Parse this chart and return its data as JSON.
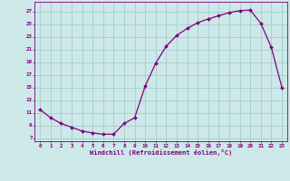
{
  "x": [
    0,
    1,
    2,
    3,
    4,
    5,
    6,
    7,
    8,
    9,
    10,
    11,
    12,
    13,
    14,
    15,
    16,
    17,
    18,
    19,
    20,
    21,
    22,
    23
  ],
  "y": [
    11.5,
    10.2,
    9.3,
    8.7,
    8.1,
    7.8,
    7.6,
    7.6,
    9.3,
    10.2,
    15.2,
    18.8,
    21.5,
    23.2,
    24.3,
    25.2,
    25.8,
    26.3,
    26.8,
    27.1,
    27.2,
    25.1,
    21.3,
    15.0
  ],
  "xlabel": "Windchill (Refroidissement éolien,°C)",
  "ylim": [
    6.5,
    28.5
  ],
  "xlim": [
    -0.5,
    23.5
  ],
  "yticks": [
    7,
    9,
    11,
    13,
    15,
    17,
    19,
    21,
    23,
    25,
    27
  ],
  "xticks": [
    0,
    1,
    2,
    3,
    4,
    5,
    6,
    7,
    8,
    9,
    10,
    11,
    12,
    13,
    14,
    15,
    16,
    17,
    18,
    19,
    20,
    21,
    22,
    23
  ],
  "line_color": "#800080",
  "marker_color": "#800080",
  "bg_color": "#cce8e8",
  "grid_color": "#a8cccc",
  "axis_color": "#800080",
  "tick_color": "#800080",
  "label_color": "#800080"
}
